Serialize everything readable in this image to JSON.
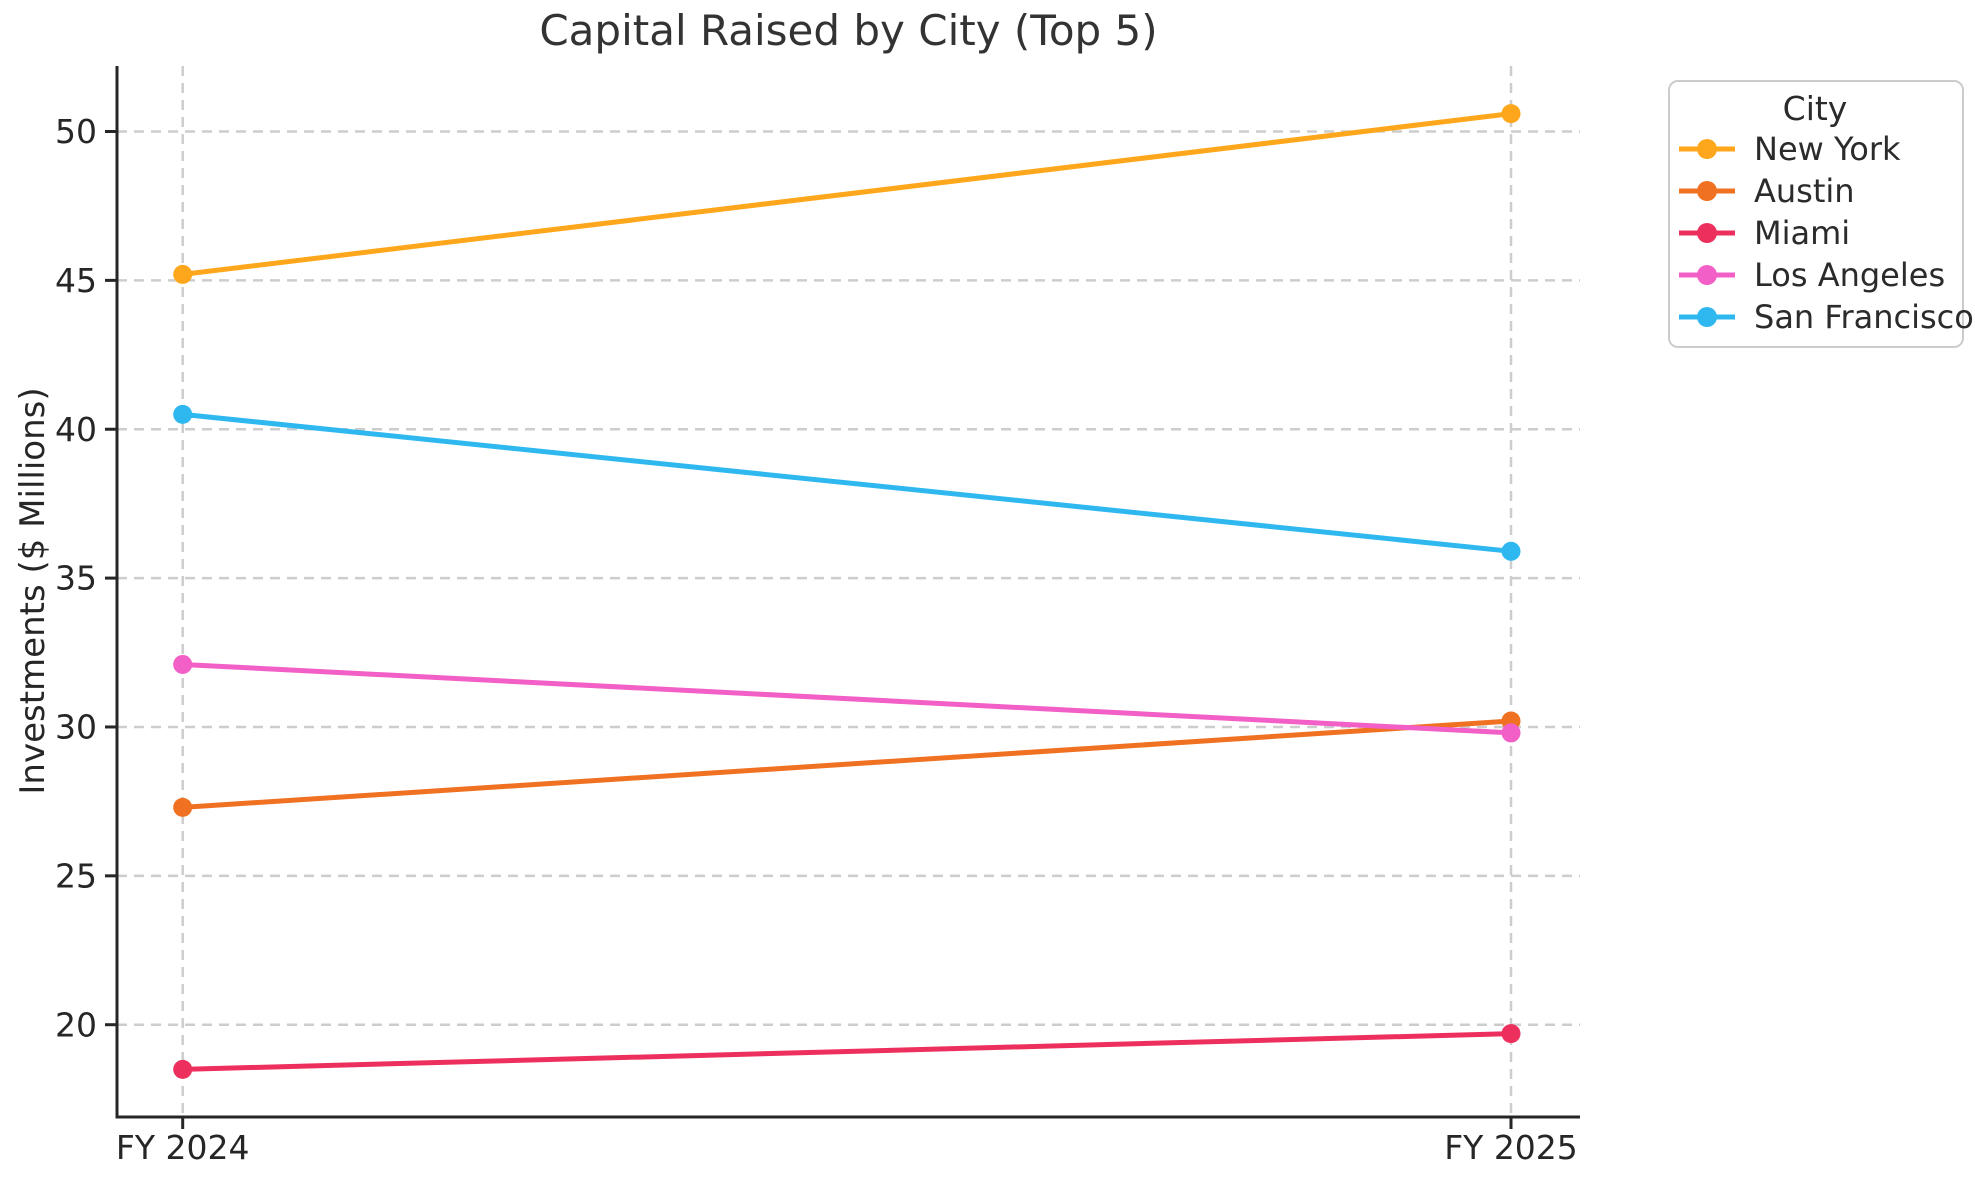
{
  "chart_data": {
    "type": "line",
    "title": "Capital Raised by City (Top 5)",
    "xlabel": "",
    "ylabel": "Investments ($ Millions)",
    "categories": [
      "FY 2024",
      "FY 2025"
    ],
    "series": [
      {
        "name": "New York",
        "color": "#FFA71C",
        "values": [
          45.2,
          50.6
        ]
      },
      {
        "name": "Austin",
        "color": "#EF7121",
        "values": [
          27.3,
          30.2
        ]
      },
      {
        "name": "Miami",
        "color": "#ED2F5E",
        "values": [
          18.5,
          19.7
        ]
      },
      {
        "name": "Los Angeles",
        "color": "#F25FC6",
        "values": [
          32.1,
          29.8
        ]
      },
      {
        "name": "San Francisco",
        "color": "#2FB8F0",
        "values": [
          40.5,
          35.9
        ]
      }
    ],
    "yticks": [
      20,
      25,
      30,
      35,
      40,
      45,
      50
    ],
    "ylim": [
      16.9,
      52.2
    ],
    "legend_title": "City",
    "legend_position": "outside-upper-right",
    "grid": "dashed horizontal lines at y ticks and vertical lines at both x categories",
    "marker": "circle"
  },
  "colors": {
    "background": "#ffffff",
    "grid": "#cdcdcd",
    "spine": "#262626",
    "tick_text": "#262626",
    "title_text": "#333333",
    "legend_border": "#cccccc"
  }
}
